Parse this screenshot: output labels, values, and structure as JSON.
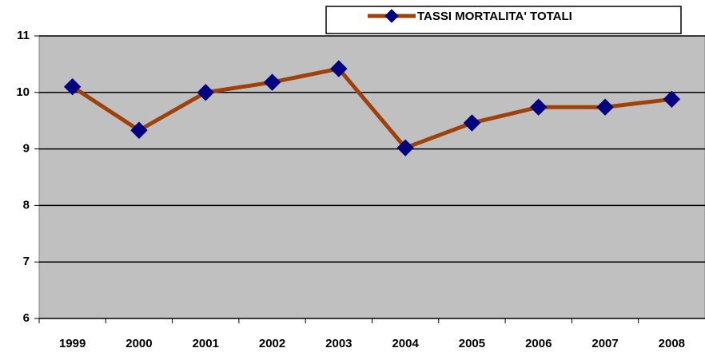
{
  "chart_data": {
    "type": "line",
    "categories": [
      "1999",
      "2000",
      "2001",
      "2002",
      "2003",
      "2004",
      "2005",
      "2006",
      "2007",
      "2008"
    ],
    "series": [
      {
        "name": "TASSI MORTALITA' TOTALI",
        "color": "#a0400a",
        "marker_color": "#000080",
        "values": [
          10.1,
          9.33,
          10.0,
          10.18,
          10.42,
          9.02,
          9.46,
          9.74,
          9.74,
          9.88
        ]
      }
    ],
    "ylim": [
      6,
      11
    ],
    "yticks": [
      6,
      7,
      8,
      9,
      10,
      11
    ],
    "grid": true,
    "legend": "top-right"
  }
}
